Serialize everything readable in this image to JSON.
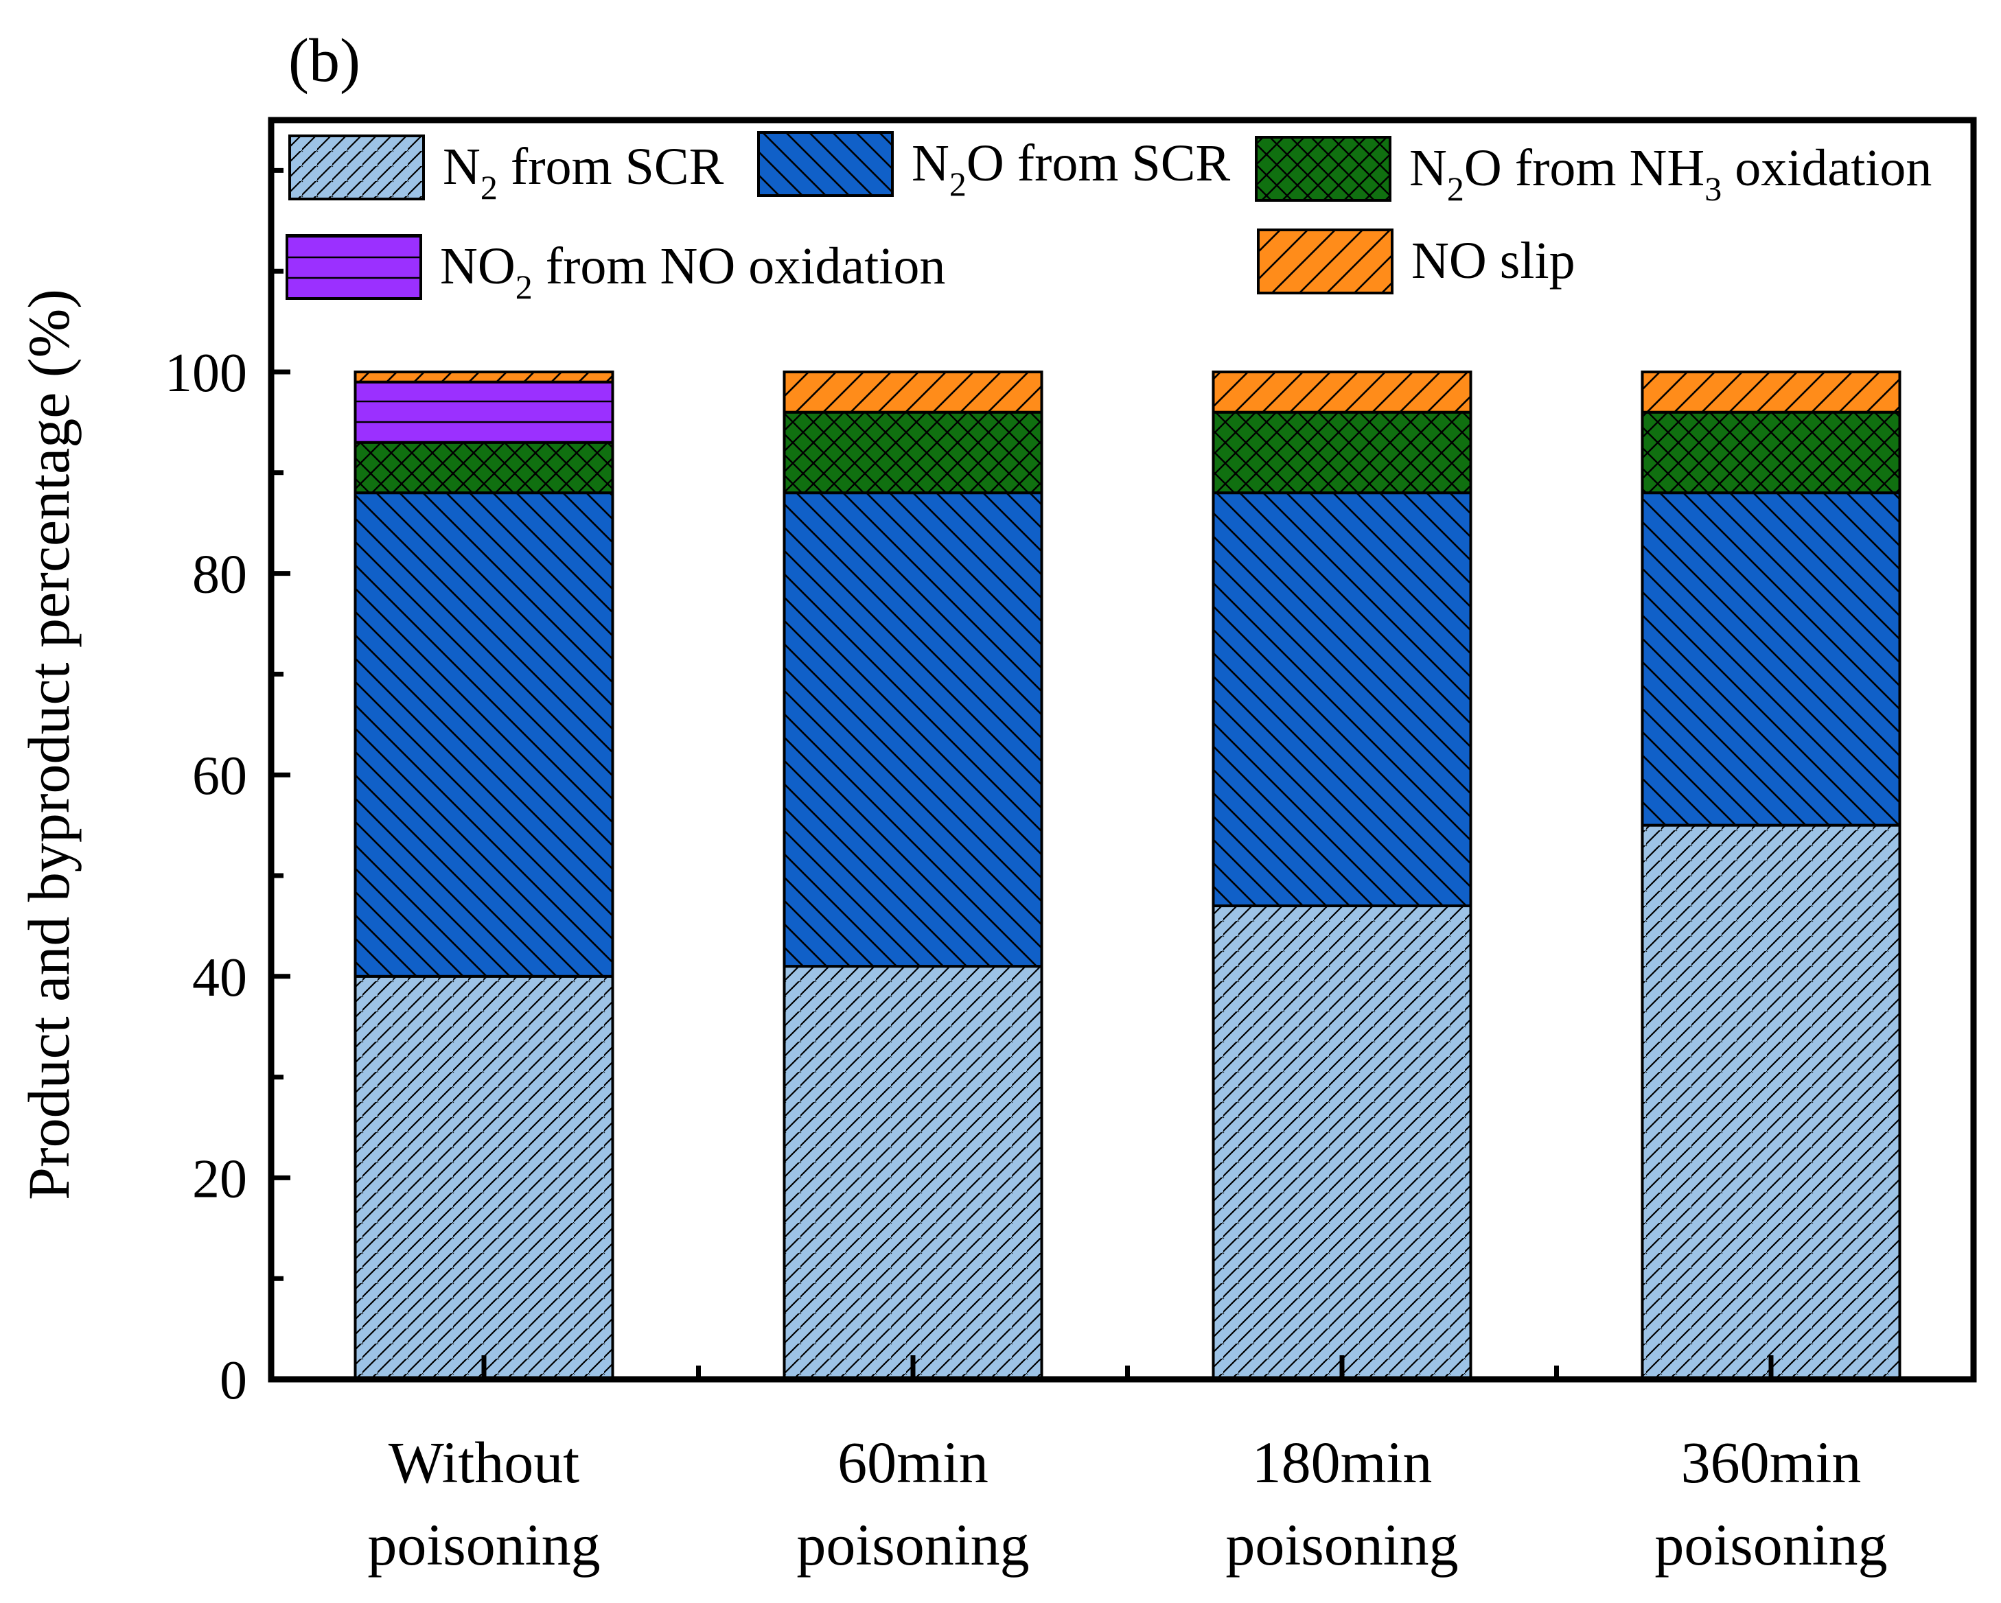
{
  "chart_data": {
    "type": "bar",
    "stacked": true,
    "panel_label": "(b)",
    "ylabel": "Product and byproduct percentage (%)",
    "ylim": [
      0,
      125
    ],
    "yticks": [
      0,
      20,
      40,
      60,
      80,
      100
    ],
    "categories": [
      [
        "Without",
        "poisoning"
      ],
      [
        "60min",
        "poisoning"
      ],
      [
        "180min",
        "poisoning"
      ],
      [
        "360min",
        "poisoning"
      ]
    ],
    "series": [
      {
        "name": "N2 from SCR",
        "legend": {
          "pre": "N",
          "sub": "2",
          "post": " from SCR"
        },
        "color": "#9DC3E6",
        "pattern": "hatch-fwd",
        "values": [
          40,
          41,
          47,
          55
        ]
      },
      {
        "name": "N2O from SCR",
        "legend": {
          "pre": "N",
          "sub": "2",
          "post": "O from SCR"
        },
        "color": "#1060C8",
        "pattern": "hatch-back",
        "values": [
          48,
          47,
          41,
          33
        ]
      },
      {
        "name": "N2O from NH3 oxidation",
        "legend": {
          "pre": "N",
          "sub": "2",
          "post": "O from NH",
          "sub2": "3",
          "post2": " oxidation"
        },
        "color": "#107010",
        "pattern": "crosshatch",
        "values": [
          5,
          8,
          8,
          8
        ]
      },
      {
        "name": "NO2 from NO oxidation",
        "legend": {
          "pre": "NO",
          "sub": "2",
          "post": " from NO oxidation"
        },
        "color": "#9B30FF",
        "pattern": "horizontal",
        "values": [
          6,
          0,
          0,
          0
        ]
      },
      {
        "name": "NO slip",
        "legend": {
          "pre": "NO slip"
        },
        "color": "#FF8C1A",
        "pattern": "hatch-fwd-wide",
        "values": [
          1,
          4,
          4,
          4
        ]
      }
    ],
    "legend_position": "top"
  }
}
